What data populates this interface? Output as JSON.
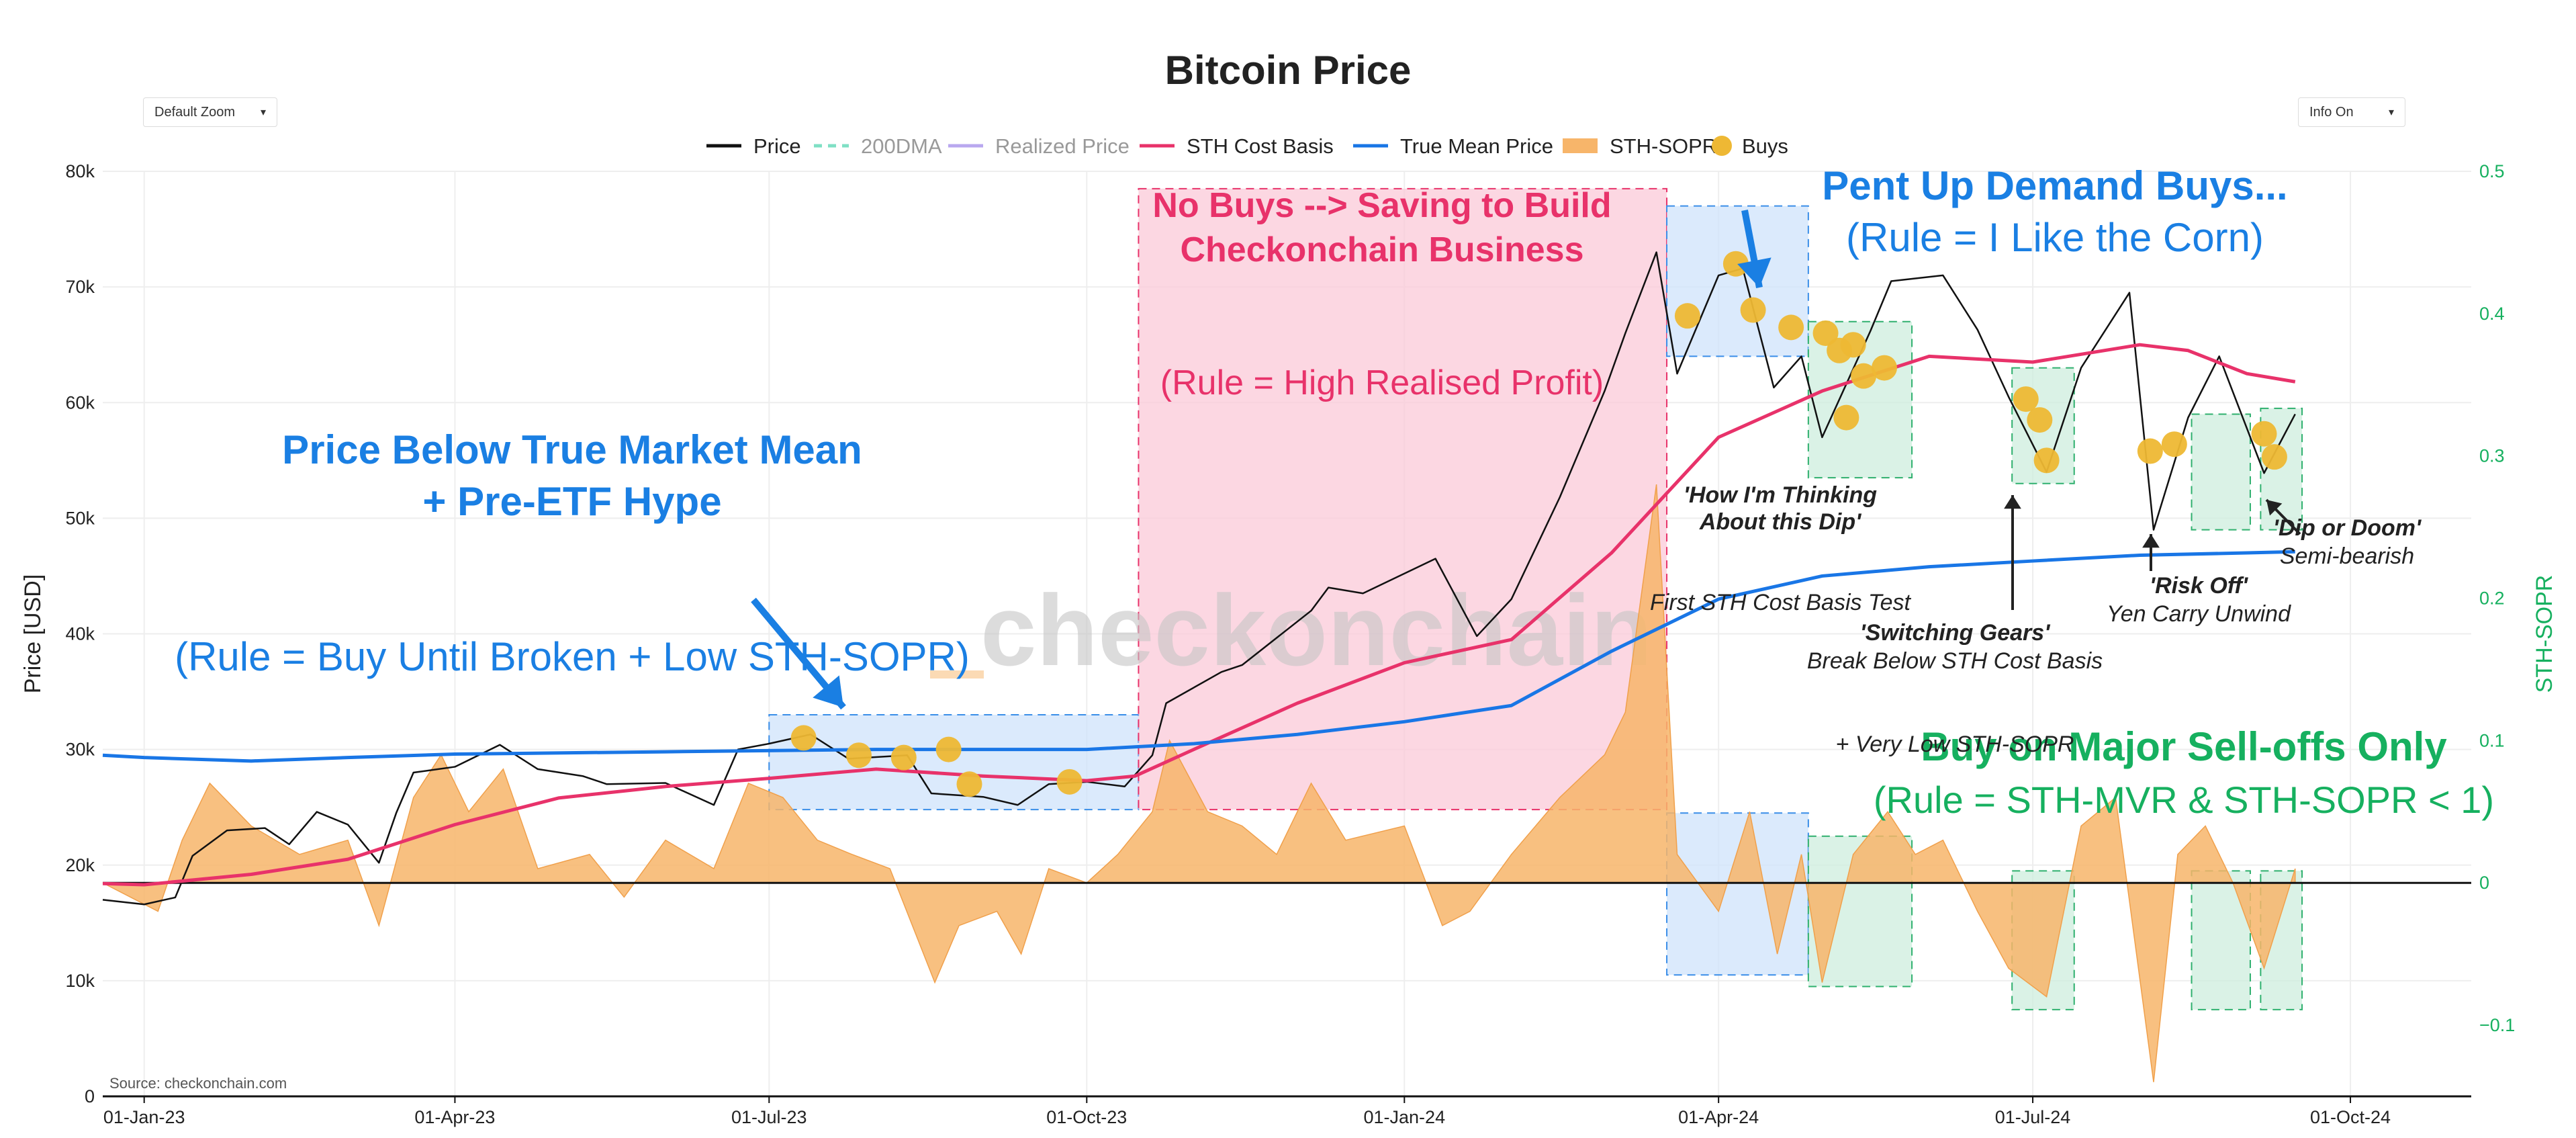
{
  "page_title": "Bitcoin Price",
  "controls": {
    "zoom_label": "Default Zoom",
    "info_label": "Info On",
    "chevron_icon": "chevron-down-icon"
  },
  "chart_data": {
    "type": "line",
    "title": "Bitcoin Price",
    "ylabel_left": "Price [USD]",
    "ylabel_right": "STH-SOPR",
    "ylim_left": [
      0,
      80000
    ],
    "ylim_right": [
      -0.15,
      0.5
    ],
    "y_ticks_left": [
      {
        "v": 0,
        "label": "0"
      },
      {
        "v": 10000,
        "label": "10k"
      },
      {
        "v": 20000,
        "label": "20k"
      },
      {
        "v": 30000,
        "label": "30k"
      },
      {
        "v": 40000,
        "label": "40k"
      },
      {
        "v": 50000,
        "label": "50k"
      },
      {
        "v": 60000,
        "label": "60k"
      },
      {
        "v": 70000,
        "label": "70k"
      },
      {
        "v": 80000,
        "label": "80k"
      }
    ],
    "y_ticks_right": [
      {
        "v": -0.1,
        "label": "−0.1"
      },
      {
        "v": 0,
        "label": "0"
      },
      {
        "v": 0.1,
        "label": "0.1"
      },
      {
        "v": 0.2,
        "label": "0.2"
      },
      {
        "v": 0.3,
        "label": "0.3"
      },
      {
        "v": 0.4,
        "label": "0.4"
      },
      {
        "v": 0.5,
        "label": "0.5"
      }
    ],
    "x_range": [
      "2022-12-20",
      "2024-11-05"
    ],
    "x_ticks": [
      {
        "date": "2023-01-01",
        "label": "01-Jan-23"
      },
      {
        "date": "2023-04-01",
        "label": "01-Apr-23"
      },
      {
        "date": "2023-07-01",
        "label": "01-Jul-23"
      },
      {
        "date": "2023-10-01",
        "label": "01-Oct-23"
      },
      {
        "date": "2024-01-01",
        "label": "01-Jan-24"
      },
      {
        "date": "2024-04-01",
        "label": "01-Apr-24"
      },
      {
        "date": "2024-07-01",
        "label": "01-Jul-24"
      },
      {
        "date": "2024-10-01",
        "label": "01-Oct-24"
      }
    ],
    "grid": true,
    "legend": [
      {
        "name": "Price",
        "color": "#111111",
        "style": "solid"
      },
      {
        "name": "200DMA",
        "color": "#7fe0c4",
        "style": "dashed"
      },
      {
        "name": "Realized Price",
        "color": "#b9a8ef",
        "style": "solid"
      },
      {
        "name": "STH Cost Basis",
        "color": "#e8326a",
        "style": "solid"
      },
      {
        "name": "True Mean Price",
        "color": "#1976e6",
        "style": "solid"
      },
      {
        "name": "STH-SOPR",
        "color": "#f7b56a",
        "style": "area"
      },
      {
        "name": "Buys",
        "color": "#eeb834",
        "style": "dot"
      }
    ],
    "series": [
      {
        "name": "Price",
        "color": "#111111",
        "points": [
          [
            "2022-12-20",
            17000
          ],
          [
            "2023-01-01",
            16600
          ],
          [
            "2023-01-10",
            17200
          ],
          [
            "2023-01-15",
            20800
          ],
          [
            "2023-01-25",
            23000
          ],
          [
            "2023-02-05",
            23200
          ],
          [
            "2023-02-12",
            21800
          ],
          [
            "2023-02-20",
            24600
          ],
          [
            "2023-03-01",
            23500
          ],
          [
            "2023-03-10",
            20200
          ],
          [
            "2023-03-15",
            24500
          ],
          [
            "2023-03-20",
            28000
          ],
          [
            "2023-04-01",
            28500
          ],
          [
            "2023-04-14",
            30400
          ],
          [
            "2023-04-25",
            28300
          ],
          [
            "2023-05-08",
            27700
          ],
          [
            "2023-05-15",
            27000
          ],
          [
            "2023-06-01",
            27100
          ],
          [
            "2023-06-15",
            25200
          ],
          [
            "2023-06-22",
            30000
          ],
          [
            "2023-07-01",
            30500
          ],
          [
            "2023-07-13",
            31300
          ],
          [
            "2023-07-24",
            29200
          ],
          [
            "2023-08-10",
            29500
          ],
          [
            "2023-08-17",
            26200
          ],
          [
            "2023-09-01",
            25900
          ],
          [
            "2023-09-11",
            25200
          ],
          [
            "2023-09-20",
            27000
          ],
          [
            "2023-10-01",
            27200
          ],
          [
            "2023-10-12",
            26800
          ],
          [
            "2023-10-20",
            29500
          ],
          [
            "2023-10-24",
            34000
          ],
          [
            "2023-11-09",
            36700
          ],
          [
            "2023-11-15",
            37300
          ],
          [
            "2023-12-05",
            42000
          ],
          [
            "2023-12-10",
            44000
          ],
          [
            "2023-12-20",
            43500
          ],
          [
            "2024-01-10",
            46500
          ],
          [
            "2024-01-22",
            39800
          ],
          [
            "2024-02-01",
            43000
          ],
          [
            "2024-02-15",
            51800
          ],
          [
            "2024-02-28",
            61000
          ],
          [
            "2024-03-05",
            66000
          ],
          [
            "2024-03-14",
            73000
          ],
          [
            "2024-03-20",
            62500
          ],
          [
            "2024-04-01",
            71000
          ],
          [
            "2024-04-08",
            71600
          ],
          [
            "2024-04-17",
            61300
          ],
          [
            "2024-04-25",
            64000
          ],
          [
            "2024-05-01",
            57000
          ],
          [
            "2024-05-15",
            66200
          ],
          [
            "2024-05-21",
            70500
          ],
          [
            "2024-06-05",
            71000
          ],
          [
            "2024-06-15",
            66300
          ],
          [
            "2024-06-24",
            60500
          ],
          [
            "2024-07-05",
            54000
          ],
          [
            "2024-07-15",
            63000
          ],
          [
            "2024-07-29",
            69500
          ],
          [
            "2024-08-05",
            49000
          ],
          [
            "2024-08-15",
            58700
          ],
          [
            "2024-08-24",
            64000
          ],
          [
            "2024-09-06",
            53900
          ],
          [
            "2024-09-15",
            59000
          ]
        ]
      },
      {
        "name": "STH Cost Basis",
        "color": "#e8326a",
        "points": [
          [
            "2022-12-20",
            18400
          ],
          [
            "2023-01-01",
            18300
          ],
          [
            "2023-02-01",
            19200
          ],
          [
            "2023-03-01",
            20500
          ],
          [
            "2023-04-01",
            23500
          ],
          [
            "2023-05-01",
            25800
          ],
          [
            "2023-06-01",
            26800
          ],
          [
            "2023-07-01",
            27500
          ],
          [
            "2023-08-01",
            28300
          ],
          [
            "2023-09-01",
            27700
          ],
          [
            "2023-10-01",
            27300
          ],
          [
            "2023-10-15",
            27700
          ],
          [
            "2023-11-01",
            30000
          ],
          [
            "2023-12-01",
            34000
          ],
          [
            "2024-01-01",
            37500
          ],
          [
            "2024-02-01",
            39500
          ],
          [
            "2024-03-01",
            47000
          ],
          [
            "2024-04-01",
            57000
          ],
          [
            "2024-05-01",
            61000
          ],
          [
            "2024-06-01",
            64000
          ],
          [
            "2024-07-01",
            63500
          ],
          [
            "2024-08-01",
            65000
          ],
          [
            "2024-08-15",
            64500
          ],
          [
            "2024-09-01",
            62500
          ],
          [
            "2024-09-15",
            61800
          ]
        ]
      },
      {
        "name": "True Mean Price",
        "color": "#1976e6",
        "points": [
          [
            "2022-12-20",
            29500
          ],
          [
            "2023-01-01",
            29300
          ],
          [
            "2023-02-01",
            29000
          ],
          [
            "2023-03-01",
            29300
          ],
          [
            "2023-04-01",
            29600
          ],
          [
            "2023-06-01",
            29800
          ],
          [
            "2023-08-01",
            30000
          ],
          [
            "2023-10-01",
            30000
          ],
          [
            "2023-11-01",
            30500
          ],
          [
            "2023-12-01",
            31300
          ],
          [
            "2024-01-01",
            32400
          ],
          [
            "2024-02-01",
            33800
          ],
          [
            "2024-03-01",
            38500
          ],
          [
            "2024-04-01",
            43000
          ],
          [
            "2024-05-01",
            45000
          ],
          [
            "2024-06-01",
            45800
          ],
          [
            "2024-07-01",
            46300
          ],
          [
            "2024-08-01",
            46800
          ],
          [
            "2024-09-01",
            47000
          ],
          [
            "2024-09-15",
            47100
          ]
        ]
      }
    ],
    "sopr_area": {
      "name": "STH-SOPR",
      "color": "#f7b56a",
      "points": [
        [
          "2022-12-20",
          0.0
        ],
        [
          "2023-01-05",
          -0.02
        ],
        [
          "2023-01-12",
          0.03
        ],
        [
          "2023-01-20",
          0.07
        ],
        [
          "2023-02-01",
          0.04
        ],
        [
          "2023-02-15",
          0.02
        ],
        [
          "2023-03-01",
          0.03
        ],
        [
          "2023-03-10",
          -0.03
        ],
        [
          "2023-03-20",
          0.06
        ],
        [
          "2023-03-28",
          0.09
        ],
        [
          "2023-04-05",
          0.05
        ],
        [
          "2023-04-15",
          0.08
        ],
        [
          "2023-04-25",
          0.01
        ],
        [
          "2023-05-10",
          0.02
        ],
        [
          "2023-05-20",
          -0.01
        ],
        [
          "2023-06-01",
          0.03
        ],
        [
          "2023-06-15",
          0.01
        ],
        [
          "2023-06-25",
          0.07
        ],
        [
          "2023-07-05",
          0.06
        ],
        [
          "2023-07-15",
          0.03
        ],
        [
          "2023-07-25",
          0.02
        ],
        [
          "2023-08-05",
          0.01
        ],
        [
          "2023-08-18",
          -0.07
        ],
        [
          "2023-08-25",
          -0.03
        ],
        [
          "2023-09-05",
          -0.02
        ],
        [
          "2023-09-12",
          -0.05
        ],
        [
          "2023-09-20",
          0.01
        ],
        [
          "2023-10-01",
          0.0
        ],
        [
          "2023-10-10",
          0.02
        ],
        [
          "2023-10-20",
          0.05
        ],
        [
          "2023-10-25",
          0.1
        ],
        [
          "2023-11-05",
          0.05
        ],
        [
          "2023-11-15",
          0.04
        ],
        [
          "2023-11-25",
          0.02
        ],
        [
          "2023-12-05",
          0.07
        ],
        [
          "2023-12-15",
          0.03
        ],
        [
          "2024-01-01",
          0.04
        ],
        [
          "2024-01-12",
          -0.03
        ],
        [
          "2024-01-20",
          -0.02
        ],
        [
          "2024-02-01",
          0.02
        ],
        [
          "2024-02-15",
          0.06
        ],
        [
          "2024-02-28",
          0.09
        ],
        [
          "2024-03-05",
          0.12
        ],
        [
          "2024-03-14",
          0.28
        ],
        [
          "2024-03-20",
          0.02
        ],
        [
          "2024-04-01",
          -0.02
        ],
        [
          "2024-04-10",
          0.05
        ],
        [
          "2024-04-18",
          -0.05
        ],
        [
          "2024-04-25",
          0.02
        ],
        [
          "2024-05-01",
          -0.07
        ],
        [
          "2024-05-10",
          0.02
        ],
        [
          "2024-05-20",
          0.05
        ],
        [
          "2024-05-28",
          0.02
        ],
        [
          "2024-06-05",
          0.03
        ],
        [
          "2024-06-15",
          -0.02
        ],
        [
          "2024-06-24",
          -0.06
        ],
        [
          "2024-07-05",
          -0.08
        ],
        [
          "2024-07-15",
          0.04
        ],
        [
          "2024-07-25",
          0.06
        ],
        [
          "2024-08-05",
          -0.14
        ],
        [
          "2024-08-12",
          0.02
        ],
        [
          "2024-08-20",
          0.04
        ],
        [
          "2024-08-28",
          0.0
        ],
        [
          "2024-09-06",
          -0.06
        ],
        [
          "2024-09-15",
          0.01
        ]
      ]
    },
    "buys": [
      {
        "date": "2023-07-11",
        "price": 31000
      },
      {
        "date": "2023-07-27",
        "price": 29500
      },
      {
        "date": "2023-08-09",
        "price": 29300
      },
      {
        "date": "2023-08-22",
        "price": 30000
      },
      {
        "date": "2023-08-28",
        "price": 27000
      },
      {
        "date": "2023-09-26",
        "price": 27200
      },
      {
        "date": "2024-03-23",
        "price": 67500
      },
      {
        "date": "2024-04-06",
        "price": 72000
      },
      {
        "date": "2024-04-11",
        "price": 68000
      },
      {
        "date": "2024-04-22",
        "price": 66500
      },
      {
        "date": "2024-05-02",
        "price": 66000
      },
      {
        "date": "2024-05-06",
        "price": 64500
      },
      {
        "date": "2024-05-08",
        "price": 58700
      },
      {
        "date": "2024-05-10",
        "price": 65000
      },
      {
        "date": "2024-05-13",
        "price": 62300
      },
      {
        "date": "2024-05-19",
        "price": 63000
      },
      {
        "date": "2024-06-29",
        "price": 60300
      },
      {
        "date": "2024-07-03",
        "price": 58500
      },
      {
        "date": "2024-07-05",
        "price": 55000
      },
      {
        "date": "2024-08-04",
        "price": 55800
      },
      {
        "date": "2024-08-11",
        "price": 56400
      },
      {
        "date": "2024-09-06",
        "price": 57300
      },
      {
        "date": "2024-09-09",
        "price": 55300
      }
    ],
    "regions": [
      {
        "x0": "2023-07-01",
        "x1": "2023-10-16",
        "y0": 24800,
        "y1": 33000,
        "fill": "#cfe3fb",
        "stroke": "#3a8ee8",
        "opacity": 0.75
      },
      {
        "x0": "2023-10-16",
        "x1": "2024-03-17",
        "y0": 24800,
        "y1": 78500,
        "fill": "#fbc9d8",
        "stroke": "#e8326a",
        "opacity": 0.75
      },
      {
        "x0": "2024-03-17",
        "x1": "2024-04-27",
        "y0": 64000,
        "y1": 77000,
        "fill": "#cfe3fb",
        "stroke": "#3a8ee8",
        "opacity": 0.75
      },
      {
        "x0": "2024-04-27",
        "x1": "2024-05-27",
        "y0": 53500,
        "y1": 67000,
        "fill": "#cdeedd",
        "stroke": "#2fb06e",
        "opacity": 0.75
      },
      {
        "x0": "2024-06-25",
        "x1": "2024-07-13",
        "y0": 53000,
        "y1": 63000,
        "fill": "#cdeedd",
        "stroke": "#2fb06e",
        "opacity": 0.75
      },
      {
        "x0": "2024-08-16",
        "x1": "2024-09-02",
        "y0": 49000,
        "y1": 59000,
        "fill": "#cdeedd",
        "stroke": "#2fb06e",
        "opacity": 0.75
      },
      {
        "x0": "2024-09-05",
        "x1": "2024-09-17",
        "y0": 49000,
        "y1": 59500,
        "fill": "#cdeedd",
        "stroke": "#2fb06e",
        "opacity": 0.75
      },
      {
        "x0": "2024-03-17",
        "x1": "2024-04-27",
        "y0": 10500,
        "y1": 24500,
        "fill": "#cfe3fb",
        "stroke": "#3a8ee8",
        "opacity": 0.75
      },
      {
        "x0": "2024-04-27",
        "x1": "2024-05-27",
        "y0": 9500,
        "y1": 22500,
        "fill": "#cdeedd",
        "stroke": "#2fb06e",
        "opacity": 0.75
      },
      {
        "x0": "2024-06-25",
        "x1": "2024-07-13",
        "y0": 7500,
        "y1": 19500,
        "fill": "#cdeedd",
        "stroke": "#2fb06e",
        "opacity": 0.75
      },
      {
        "x0": "2024-08-16",
        "x1": "2024-09-02",
        "y0": 7500,
        "y1": 19500,
        "fill": "#cdeedd",
        "stroke": "#2fb06e",
        "opacity": 0.75
      },
      {
        "x0": "2024-09-05",
        "x1": "2024-09-17",
        "y0": 7500,
        "y1": 19500,
        "fill": "#cdeedd",
        "stroke": "#2fb06e",
        "opacity": 0.75
      }
    ],
    "annotations": {
      "blue_big": {
        "lines": [
          "Price Below True Market Mean",
          "+ Pre-ETF Hype",
          "(Rule = Buy Until Broken + Low STH-SOPR)"
        ],
        "color": "#1a7fe3"
      },
      "pink": {
        "lines": [
          "No Buys --> Saving to Build",
          "Checkonchain Business",
          "(Rule = High Realised Profit)"
        ],
        "color": "#e8326a"
      },
      "pent": {
        "lines": [
          "Pent Up Demand Buys...",
          "(Rule = I Like the Corn)"
        ],
        "color": "#1a7fe3"
      },
      "green": {
        "lines": [
          "Buy on Major Sell-offs Only",
          "(Rule = STH-MVR & STH-SOPR < 1)"
        ],
        "color": "#16b05f"
      },
      "dip": {
        "lines": [
          "'How I'm Thinking",
          "About this Dip'",
          "First STH Cost Basis Test"
        ]
      },
      "gears": {
        "lines": [
          "'Switching Gears'",
          "Break Below STH Cost Basis",
          "+ Very Low STH-SOPR"
        ]
      },
      "risk": {
        "lines": [
          "'Risk Off'",
          "Yen Carry Unwind"
        ]
      },
      "doom": {
        "lines": [
          "'Dip or Doom'",
          "Semi-bearish"
        ]
      }
    },
    "watermark": "checkonchain",
    "source": "Source: checkonchain.com"
  }
}
